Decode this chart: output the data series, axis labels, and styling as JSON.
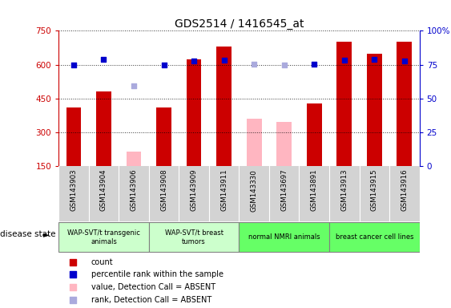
{
  "title": "GDS2514 / 1416545_at",
  "samples": [
    "GSM143903",
    "GSM143904",
    "GSM143906",
    "GSM143908",
    "GSM143909",
    "GSM143911",
    "GSM143330",
    "GSM143697",
    "GSM143891",
    "GSM143913",
    "GSM143915",
    "GSM143916"
  ],
  "count_values": [
    410,
    480,
    null,
    410,
    625,
    680,
    null,
    null,
    430,
    700,
    650,
    700
  ],
  "count_absent": [
    null,
    null,
    215,
    null,
    null,
    null,
    360,
    345,
    null,
    null,
    null,
    null
  ],
  "rank_values": [
    600,
    625,
    null,
    600,
    615,
    620,
    null,
    null,
    603,
    620,
    625,
    617
  ],
  "rank_absent": [
    null,
    null,
    505,
    null,
    null,
    null,
    603,
    598,
    null,
    null,
    null,
    null
  ],
  "ylim_left": [
    150,
    750
  ],
  "ylim_right": [
    0,
    100
  ],
  "yticks_left": [
    150,
    300,
    450,
    600,
    750
  ],
  "yticks_right": [
    0,
    25,
    50,
    75,
    100
  ],
  "bar_color": "#cc0000",
  "bar_absent_color": "#ffb6c1",
  "rank_color": "#0000cc",
  "rank_absent_color": "#aaaadd",
  "groups": [
    {
      "label": "WAP-SVT/t transgenic\nanimals",
      "indices": [
        0,
        1,
        2
      ],
      "color": "#ccffcc"
    },
    {
      "label": "WAP-SVT/t breast\ntumors",
      "indices": [
        3,
        4,
        5
      ],
      "color": "#ccffcc"
    },
    {
      "label": "normal NMRI animals",
      "indices": [
        6,
        7,
        8
      ],
      "color": "#66ff66"
    },
    {
      "label": "breast cancer cell lines",
      "indices": [
        9,
        10,
        11
      ],
      "color": "#66ff66"
    }
  ],
  "disease_state_label": "disease state",
  "legend_items": [
    {
      "label": "count",
      "color": "#cc0000"
    },
    {
      "label": "percentile rank within the sample",
      "color": "#0000cc"
    },
    {
      "label": "value, Detection Call = ABSENT",
      "color": "#ffb6c1"
    },
    {
      "label": "rank, Detection Call = ABSENT",
      "color": "#aaaadd"
    }
  ],
  "bar_width": 0.5,
  "sample_area_color": "#d3d3d3",
  "spine_color_left": "#cc0000",
  "spine_color_right": "#0000cc"
}
